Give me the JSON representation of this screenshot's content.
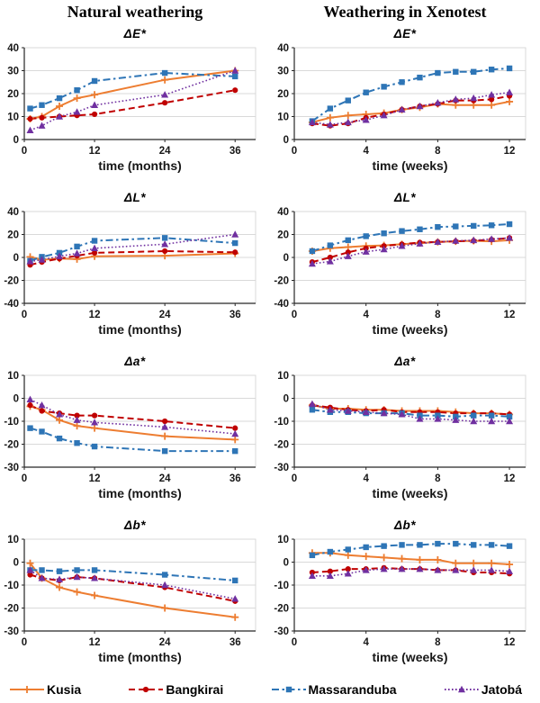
{
  "columns": [
    {
      "title": "Natural weathering"
    },
    {
      "title": "Weathering in Xenotest"
    }
  ],
  "legend": {
    "items": [
      {
        "label": "Kusia"
      },
      {
        "label": "Bangkirai"
      },
      {
        "label": "Massaranduba"
      },
      {
        "label": "Jatobá"
      }
    ]
  },
  "series_styles": [
    {
      "name": "Kusia",
      "color": "#ED7D31",
      "dash": "solid",
      "marker": "plus"
    },
    {
      "name": "Bangkirai",
      "color": "#C00000",
      "dash": "dashed",
      "marker": "circle"
    },
    {
      "name": "Massaranduba",
      "color": "#2E75B6",
      "dash": "dashdot",
      "marker": "square"
    },
    {
      "name": "Jatobá",
      "color": "#7030A0",
      "dash": "dotted",
      "marker": "triangle"
    }
  ],
  "chart_data": [
    {
      "type": "line",
      "title": "ΔE*",
      "column": "Natural weathering",
      "xlabel": "time (months)",
      "xlim": [
        0,
        39.5
      ],
      "xticks": [
        0,
        12,
        24,
        36
      ],
      "ylim": [
        0,
        40
      ],
      "yticks": [
        0,
        10,
        20,
        30,
        40
      ],
      "grid": true,
      "x": [
        1,
        3,
        6,
        9,
        12,
        24,
        36
      ],
      "series": [
        {
          "name": "Kusia",
          "values": [
            9,
            10,
            14.5,
            18,
            19.5,
            26,
            30
          ]
        },
        {
          "name": "Bangkirai",
          "values": [
            9,
            9.5,
            10,
            10.5,
            11,
            16,
            21.5
          ]
        },
        {
          "name": "Massaranduba",
          "values": [
            13.5,
            15,
            18,
            21.5,
            25.5,
            29,
            27.5
          ]
        },
        {
          "name": "Jatobá",
          "values": [
            4,
            6,
            10,
            12,
            15,
            19.5,
            30
          ]
        }
      ]
    },
    {
      "type": "line",
      "title": "ΔE*",
      "column": "Weathering in Xenotest",
      "xlabel": "time (weeks)",
      "xlim": [
        0,
        12.9
      ],
      "xticks": [
        0,
        4,
        8,
        12
      ],
      "ylim": [
        0,
        40
      ],
      "yticks": [
        0,
        10,
        20,
        30,
        40
      ],
      "grid": true,
      "x": [
        1,
        2,
        3,
        4,
        5,
        6,
        7,
        8,
        9,
        10,
        11,
        12
      ],
      "series": [
        {
          "name": "Kusia",
          "values": [
            7.5,
            9.5,
            10.5,
            11,
            11.5,
            13,
            14,
            15.5,
            15,
            15,
            15,
            16.5
          ]
        },
        {
          "name": "Bangkirai",
          "values": [
            7,
            6,
            7,
            9.5,
            11,
            13,
            14.5,
            15.5,
            17,
            17,
            17.5,
            19
          ]
        },
        {
          "name": "Massaranduba",
          "values": [
            8,
            13.5,
            17,
            20.5,
            23,
            25,
            27,
            29,
            29.5,
            29.5,
            30.5,
            31
          ]
        },
        {
          "name": "Jatobá",
          "values": [
            7.5,
            6.5,
            7.5,
            8.5,
            10.5,
            13,
            14.5,
            16,
            17.5,
            18,
            19.5,
            20.5
          ]
        }
      ]
    },
    {
      "type": "line",
      "title": "ΔL*",
      "column": "Natural weathering",
      "xlabel": "time (months)",
      "xlim": [
        0,
        39.5
      ],
      "xticks": [
        0,
        12,
        24,
        36
      ],
      "ylim": [
        -40,
        40
      ],
      "yticks": [
        -40,
        -20,
        0,
        20,
        40
      ],
      "grid": true,
      "x": [
        1,
        3,
        6,
        9,
        12,
        24,
        36
      ],
      "series": [
        {
          "name": "Kusia",
          "values": [
            0.5,
            -2,
            -1,
            -1.5,
            1,
            1.5,
            3.5
          ]
        },
        {
          "name": "Bangkirai",
          "values": [
            -6.5,
            -4,
            -1,
            1.5,
            4,
            5.5,
            4.5
          ]
        },
        {
          "name": "Massaranduba",
          "values": [
            -3,
            0.5,
            4,
            9.5,
            14.5,
            17,
            12.5
          ]
        },
        {
          "name": "Jatobá",
          "values": [
            -3.5,
            -2,
            1,
            3.5,
            8,
            11.5,
            20
          ]
        }
      ]
    },
    {
      "type": "line",
      "title": "ΔL*",
      "column": "Weathering in Xenotest",
      "xlabel": "time (weeks)",
      "xlim": [
        0,
        12.9
      ],
      "xticks": [
        0,
        4,
        8,
        12
      ],
      "ylim": [
        -40,
        40
      ],
      "yticks": [
        -40,
        -20,
        0,
        20,
        40
      ],
      "grid": true,
      "x": [
        1,
        2,
        3,
        4,
        5,
        6,
        7,
        8,
        9,
        10,
        11,
        12
      ],
      "series": [
        {
          "name": "Kusia",
          "values": [
            5.5,
            8,
            9,
            10,
            10.5,
            11.5,
            12.5,
            13.5,
            14,
            14.5,
            14,
            15
          ]
        },
        {
          "name": "Bangkirai",
          "values": [
            -4,
            0,
            4.5,
            8,
            10,
            11.5,
            13,
            13.5,
            14,
            14.5,
            15.5,
            17
          ]
        },
        {
          "name": "Massaranduba",
          "values": [
            5.5,
            10.5,
            15,
            18.5,
            21,
            23,
            24.5,
            26.5,
            27,
            27.5,
            28,
            29
          ]
        },
        {
          "name": "Jatobá",
          "values": [
            -5.5,
            -3.5,
            1,
            5,
            7,
            10,
            12,
            13.5,
            14.5,
            15,
            16,
            17
          ]
        }
      ]
    },
    {
      "type": "line",
      "title": "Δa*",
      "column": "Natural weathering",
      "xlabel": "time (months)",
      "xlim": [
        0,
        39.5
      ],
      "xticks": [
        0,
        12,
        24,
        36
      ],
      "ylim": [
        -30,
        10
      ],
      "yticks": [
        -30,
        -20,
        -10,
        0,
        10
      ],
      "grid": true,
      "x": [
        1,
        3,
        6,
        9,
        12,
        24,
        36
      ],
      "series": [
        {
          "name": "Kusia",
          "values": [
            -3.5,
            -5,
            -9.5,
            -12,
            -13,
            -16.5,
            -18
          ]
        },
        {
          "name": "Bangkirai",
          "values": [
            -3,
            -5.5,
            -6.5,
            -7.5,
            -7.5,
            -10,
            -13
          ]
        },
        {
          "name": "Massaranduba",
          "values": [
            -13,
            -14.5,
            -17.5,
            -19.5,
            -21,
            -23,
            -23
          ]
        },
        {
          "name": "Jatobá",
          "values": [
            -0.5,
            -3,
            -7,
            -9.5,
            -10.5,
            -12.5,
            -15.5
          ]
        }
      ]
    },
    {
      "type": "line",
      "title": "Δa*",
      "column": "Weathering in Xenotest",
      "xlabel": "time (weeks)",
      "xlim": [
        0,
        12.9
      ],
      "xticks": [
        0,
        4,
        8,
        12
      ],
      "ylim": [
        -30,
        10
      ],
      "yticks": [
        -30,
        -20,
        -10,
        0,
        10
      ],
      "grid": true,
      "x": [
        1,
        2,
        3,
        4,
        5,
        6,
        7,
        8,
        9,
        10,
        11,
        12
      ],
      "series": [
        {
          "name": "Kusia",
          "values": [
            -3,
            -4.5,
            -4.5,
            -5,
            -5,
            -5.5,
            -5.5,
            -5.5,
            -6,
            -6.5,
            -6.5,
            -7
          ]
        },
        {
          "name": "Bangkirai",
          "values": [
            -3,
            -4,
            -5,
            -5.5,
            -5,
            -6,
            -6,
            -6,
            -6.5,
            -6.5,
            -6.5,
            -7
          ]
        },
        {
          "name": "Massaranduba",
          "values": [
            -5,
            -6,
            -6,
            -6.5,
            -6.5,
            -6.5,
            -7.5,
            -7.5,
            -8,
            -7.5,
            -7.5,
            -8
          ]
        },
        {
          "name": "Jatobá",
          "values": [
            -2.5,
            -5,
            -5.5,
            -6,
            -6.5,
            -7,
            -9,
            -9,
            -9.5,
            -10,
            -10,
            -10
          ]
        }
      ]
    },
    {
      "type": "line",
      "title": "Δb*",
      "column": "Natural weathering",
      "xlabel": "time (months)",
      "xlim": [
        0,
        39.5
      ],
      "xticks": [
        0,
        12,
        24,
        36
      ],
      "ylim": [
        -30,
        10
      ],
      "yticks": [
        -30,
        -20,
        -10,
        0,
        10
      ],
      "grid": true,
      "x": [
        1,
        3,
        6,
        9,
        12,
        24,
        36
      ],
      "series": [
        {
          "name": "Kusia",
          "values": [
            -0.5,
            -7,
            -11,
            -13,
            -14.5,
            -20,
            -24
          ]
        },
        {
          "name": "Bangkirai",
          "values": [
            -5.5,
            -7,
            -8,
            -6.5,
            -7,
            -11,
            -17
          ]
        },
        {
          "name": "Massaranduba",
          "values": [
            -3.5,
            -3.5,
            -4,
            -3.5,
            -3.5,
            -5.5,
            -8
          ]
        },
        {
          "name": "Jatobá",
          "values": [
            -3.5,
            -7,
            -7.5,
            -6.5,
            -7,
            -10,
            -16
          ]
        }
      ]
    },
    {
      "type": "line",
      "title": "Δb*",
      "column": "Weathering in Xenotest",
      "xlabel": "time (weeks)",
      "xlim": [
        0,
        12.9
      ],
      "xticks": [
        0,
        4,
        8,
        12
      ],
      "ylim": [
        -30,
        10
      ],
      "yticks": [
        -30,
        -20,
        -10,
        0,
        10
      ],
      "grid": true,
      "x": [
        1,
        2,
        3,
        4,
        5,
        6,
        7,
        8,
        9,
        10,
        11,
        12
      ],
      "series": [
        {
          "name": "Kusia",
          "values": [
            4,
            4,
            3,
            2.5,
            2,
            1.5,
            1,
            1,
            -0.5,
            -0.5,
            -0.5,
            -1
          ]
        },
        {
          "name": "Bangkirai",
          "values": [
            -4.5,
            -4,
            -3,
            -3,
            -2.5,
            -3,
            -3,
            -3.5,
            -3.5,
            -4.5,
            -4.5,
            -5
          ]
        },
        {
          "name": "Massaranduba",
          "values": [
            3,
            4.5,
            5.5,
            6.5,
            7,
            7.5,
            7.5,
            8,
            8,
            7.5,
            7.5,
            7
          ]
        },
        {
          "name": "Jatobá",
          "values": [
            -6,
            -6,
            -5,
            -3.5,
            -3,
            -3,
            -3,
            -3.5,
            -3.5,
            -3.5,
            -3.5,
            -4
          ]
        }
      ]
    }
  ]
}
